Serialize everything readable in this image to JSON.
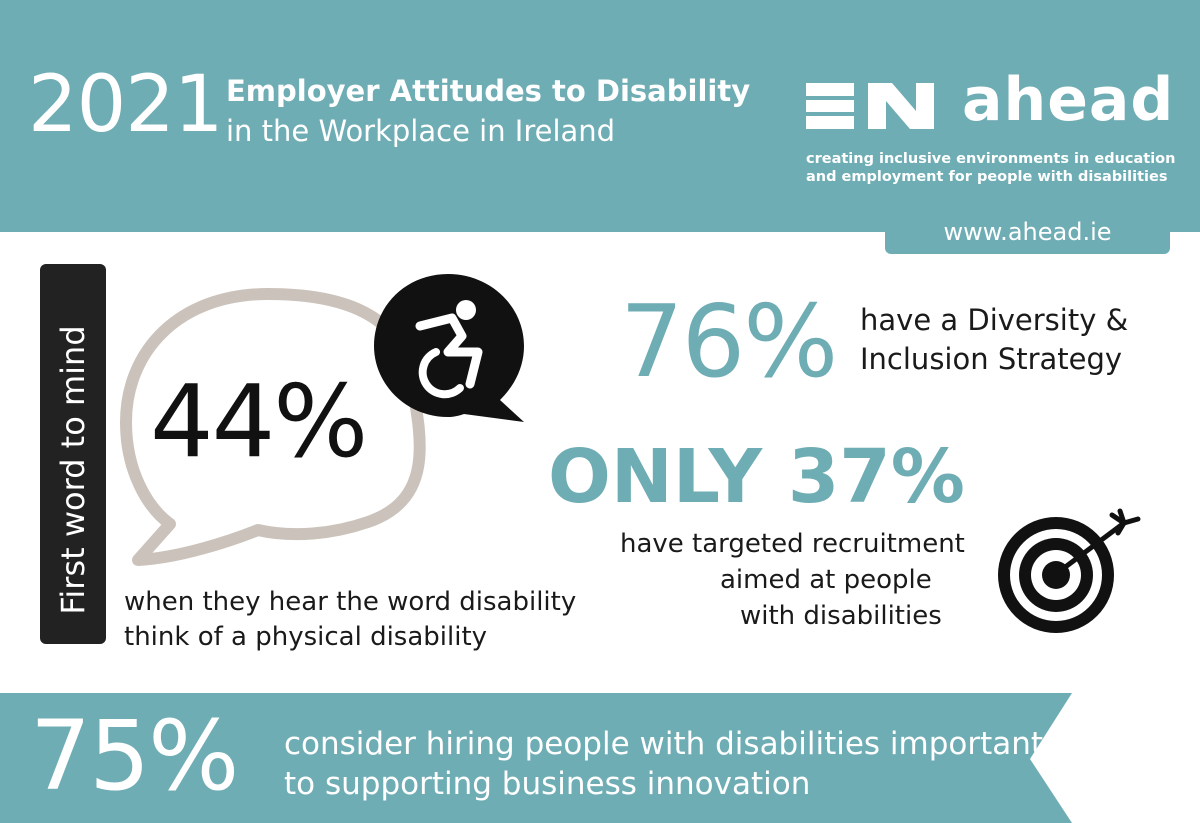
{
  "header": {
    "year": "2021",
    "title_bold": "Employer Attitudes to Disability",
    "title_sub": "in the Workplace in Ireland",
    "logo_name": "ahead",
    "tagline_line1": "creating inclusive environments in education",
    "tagline_line2": "and employment for people with disabilities",
    "url": "www.ahead.ie"
  },
  "side_label": "First word to mind",
  "stat_physical": {
    "value": "44%",
    "desc_line1": "when they hear the word disability",
    "desc_line2": "think of a physical disability",
    "icon": "accessible-wheelchair-icon"
  },
  "stat_strategy": {
    "value": "76%",
    "desc_line1": "have a Diversity &",
    "desc_line2": "Inclusion Strategy"
  },
  "stat_recruitment": {
    "value": "ONLY 37%",
    "desc_line1": "have targeted recruitment",
    "desc_line2": "aimed at people",
    "desc_line3": "with disabilities",
    "icon": "target-icon"
  },
  "stat_innovation": {
    "value": "75%",
    "desc_line1": "consider hiring people with disabilities important",
    "desc_line2": "to supporting business innovation"
  },
  "colors": {
    "teal": "#6fadb5",
    "dark": "#222222",
    "bubble_outline": "#cbc3bb",
    "white": "#ffffff"
  }
}
